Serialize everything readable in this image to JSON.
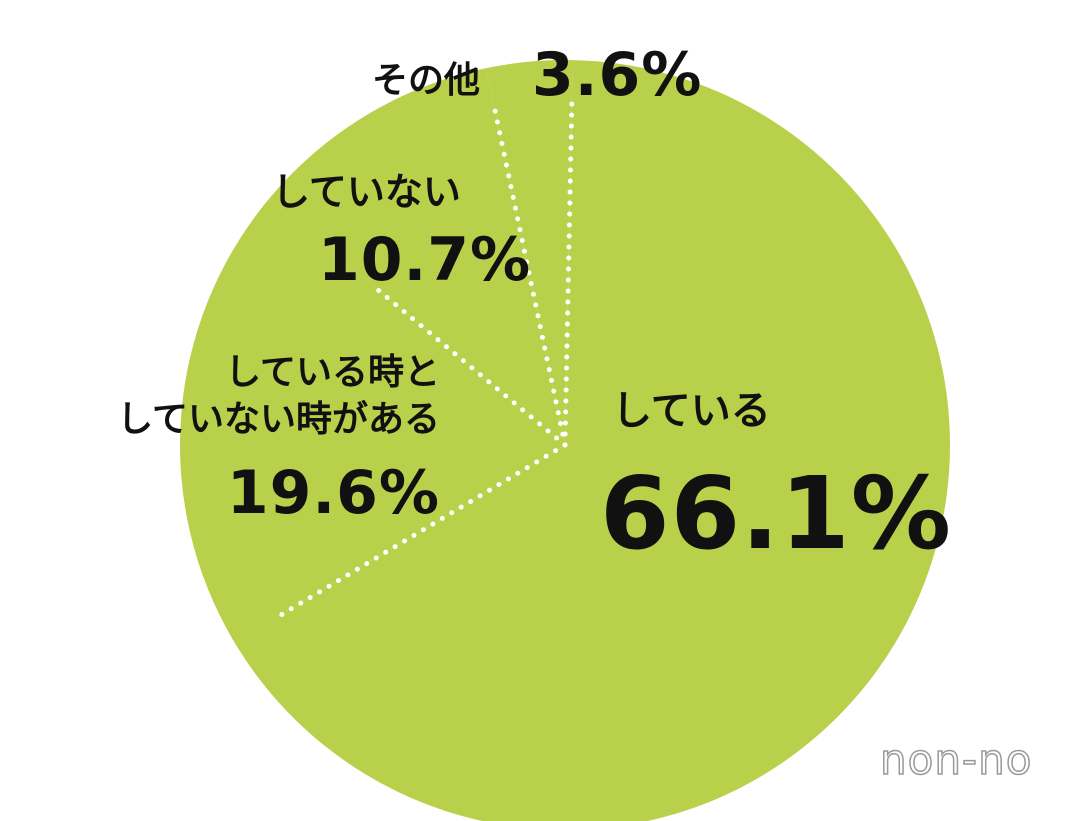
{
  "chart_data": {
    "type": "pie",
    "categories": [
      "している",
      "している時と\nしていない時がある",
      "していない",
      "その他"
    ],
    "values": [
      66.1,
      19.6,
      10.7,
      3.6
    ],
    "value_labels": [
      "66.1%",
      "19.6%",
      "10.7%",
      "3.6%"
    ],
    "color": "#b8d04a"
  },
  "logo": "non-no"
}
